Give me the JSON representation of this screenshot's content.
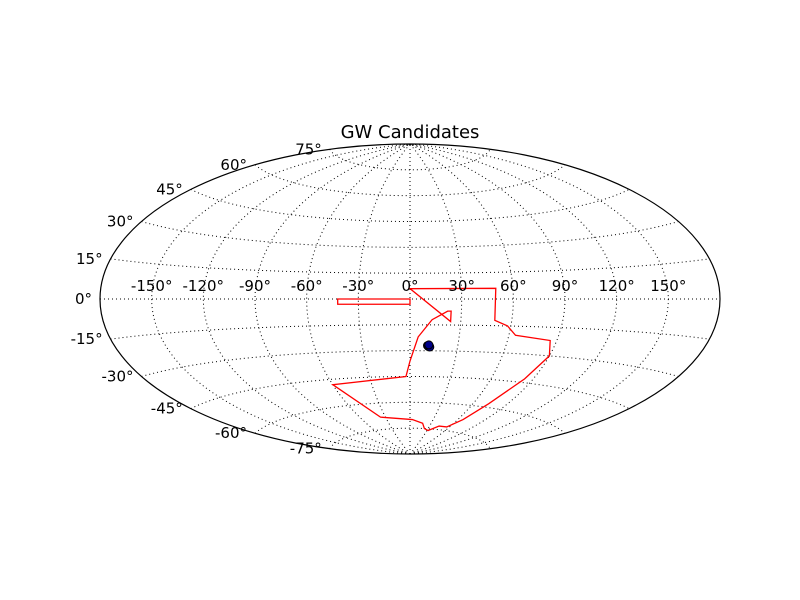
{
  "chart_data": {
    "type": "scatter",
    "projection": "aitoff",
    "title": "GW Candidates",
    "xlabel": "",
    "ylabel": "",
    "grid": true,
    "longitude_ticks": [
      -150,
      -120,
      -90,
      -60,
      -30,
      0,
      30,
      60,
      90,
      120,
      150
    ],
    "longitude_tick_labels": [
      "-150°",
      "-120°",
      "-90°",
      "-60°",
      "-30°",
      "0°",
      "30°",
      "60°",
      "90°",
      "120°",
      "150°"
    ],
    "latitude_ticks": [
      75,
      60,
      45,
      30,
      15,
      0,
      -15,
      -30,
      -45,
      -60,
      -75
    ],
    "latitude_tick_labels": [
      "75°",
      "60°",
      "45°",
      "30°",
      "15°",
      "0°",
      "-15°",
      "-30°",
      "-45°",
      "-60°",
      "-75°"
    ],
    "footprint": {
      "color": "#ff0000",
      "vertices_lon_lat": [
        [
          0,
          6
        ],
        [
          50,
          6
        ],
        [
          50,
          -12
        ],
        [
          58,
          -15
        ],
        [
          64,
          -20
        ],
        [
          86,
          -22
        ],
        [
          90,
          -30
        ],
        [
          84,
          -43
        ],
        [
          74,
          -58
        ],
        [
          66,
          -68
        ],
        [
          56,
          -73
        ],
        [
          44,
          -73
        ],
        [
          32,
          -76
        ],
        [
          24,
          -75
        ],
        [
          18,
          -72
        ],
        [
          3,
          -70
        ],
        [
          -36,
          -68
        ],
        [
          -60,
          -48
        ],
        [
          -3,
          -45
        ],
        [
          0,
          -36
        ],
        [
          5,
          -22
        ],
        [
          13,
          -12
        ],
        [
          22,
          -7
        ],
        [
          24,
          -7
        ],
        [
          24,
          -12
        ],
        [
          24,
          -12
        ],
        [
          24,
          -13
        ],
        [
          24,
          -13
        ],
        [
          24,
          -13
        ],
        [
          24,
          -13
        ]
      ]
    },
    "footprint_strip": {
      "color": "#ff0000",
      "vertices_lon_lat": [
        [
          -42,
          0
        ],
        [
          0,
          0
        ],
        [
          0,
          -3
        ],
        [
          -42,
          -3
        ]
      ]
    },
    "points": {
      "color": "#00008b",
      "edge_color": "#000000",
      "lon_lat": [
        [
          11,
          -27
        ],
        [
          12,
          -27
        ],
        [
          11.5,
          -27.5
        ],
        [
          12.5,
          -27.8
        ],
        [
          11.8,
          -26.6
        ]
      ]
    }
  }
}
